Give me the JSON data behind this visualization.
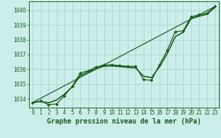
{
  "title": "Graphe pression niveau de la mer (hPa)",
  "background_color": "#cceeea",
  "grid_color": "#aad4ce",
  "line_color": "#1a5c1a",
  "marker_color": "#1a5c1a",
  "xlim": [
    -0.5,
    23.5
  ],
  "ylim": [
    1033.4,
    1040.6
  ],
  "yticks": [
    1034,
    1035,
    1036,
    1037,
    1038,
    1039,
    1040
  ],
  "xticks": [
    0,
    1,
    2,
    3,
    4,
    5,
    6,
    7,
    8,
    9,
    10,
    11,
    12,
    13,
    14,
    15,
    16,
    17,
    18,
    19,
    20,
    21,
    22,
    23
  ],
  "series": {
    "main": {
      "x": [
        0,
        1,
        2,
        3,
        4,
        5,
        6,
        7,
        8,
        9,
        10,
        11,
        12,
        13,
        14,
        15,
        16,
        17,
        18,
        19,
        20,
        21,
        22,
        23
      ],
      "y": [
        1033.75,
        1033.85,
        1033.6,
        1033.65,
        1034.2,
        1034.85,
        1035.75,
        1035.9,
        1036.15,
        1036.3,
        1036.3,
        1036.25,
        1036.2,
        1036.2,
        1035.3,
        1035.25,
        1036.3,
        1037.3,
        1038.55,
        1038.6,
        1039.55,
        1039.7,
        1039.8,
        1040.25
      ]
    },
    "trend": {
      "x": [
        0,
        23
      ],
      "y": [
        1033.75,
        1040.25
      ]
    },
    "smooth1": {
      "x": [
        0,
        1,
        2,
        3,
        4,
        5,
        6,
        7,
        8,
        9,
        10,
        11,
        12,
        13,
        14,
        15,
        16,
        17,
        18,
        19,
        20,
        21,
        22,
        23
      ],
      "y": [
        1033.75,
        1033.8,
        1033.72,
        1033.9,
        1034.3,
        1034.8,
        1035.55,
        1035.82,
        1036.02,
        1036.2,
        1036.22,
        1036.18,
        1036.12,
        1036.08,
        1035.52,
        1035.42,
        1036.15,
        1037.05,
        1038.2,
        1038.5,
        1039.42,
        1039.58,
        1039.72,
        1040.18
      ]
    },
    "smooth2": {
      "x": [
        0,
        1,
        2,
        3,
        4,
        5,
        6,
        7,
        8,
        9,
        10,
        11,
        12,
        13,
        14,
        15,
        16,
        17,
        18,
        19,
        20,
        21,
        22,
        23
      ],
      "y": [
        1033.75,
        1033.82,
        1033.74,
        1033.92,
        1034.32,
        1034.82,
        1035.58,
        1035.85,
        1036.05,
        1036.22,
        1036.24,
        1036.2,
        1036.14,
        1036.1,
        1035.54,
        1035.44,
        1036.17,
        1037.08,
        1038.22,
        1038.52,
        1039.44,
        1039.6,
        1039.74,
        1040.2
      ]
    }
  },
  "ylabel_fontsize": 6.0,
  "xlabel_fontsize": 7.0,
  "tick_fontsize": 5.5
}
